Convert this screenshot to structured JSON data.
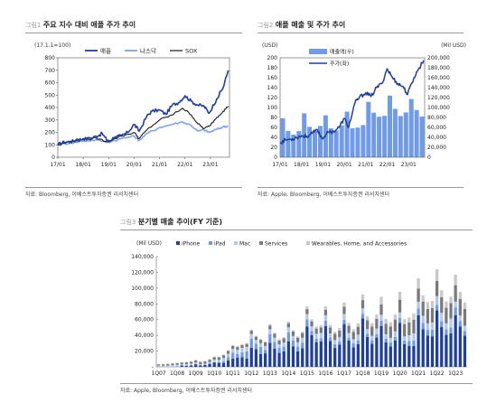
{
  "figure1": {
    "label": "그림1",
    "title": "주요 지수 대비 애플 주가 추이",
    "note": "(17.1.1=100)",
    "source": "자료: Bloomberg, 이베스트투자증권 리서치센터"
  },
  "figure2": {
    "label": "그림2",
    "title": "애플 매출 및 주가 추이",
    "left_unit": "(USD)",
    "right_unit": "(Mil USD)",
    "source": "자료: Apple, Bloomberg, 이베스트투자증권 리서치센터"
  },
  "figure3": {
    "label": "그림3",
    "title": "분기별 매출 추이(FY 기준)",
    "unit": "(Mil USD)",
    "source": "자료: Apple, Bloomberg, 이베스트투자증권 리서치센터"
  },
  "colors": {
    "apple": "#1f3f9e",
    "nasdaq": "#7ea6e6",
    "sox": "#1a1a1a",
    "revenue_bar": "#6f9be8",
    "price_line": "#1f3f9e",
    "iphone": "#1f3f9e",
    "ipad": "#6f9be8",
    "mac": "#b4c8ee",
    "services": "#7a7a7a",
    "wearables": "#c9c9c9"
  },
  "chart_data": [
    {
      "type": "line",
      "ylim": [
        0,
        800
      ],
      "yticks": [
        0,
        100,
        200,
        300,
        400,
        500,
        600,
        700,
        800
      ],
      "xticks": [
        "17/01",
        "18/01",
        "19/01",
        "20/01",
        "21/01",
        "22/01",
        "23/01"
      ],
      "xrange": [
        2017.0,
        2023.75
      ],
      "series": [
        {
          "name": "애플",
          "x": [
            2017.0,
            2017.25,
            2017.5,
            2017.75,
            2018.0,
            2018.25,
            2018.5,
            2018.75,
            2018.95,
            2019.0,
            2019.25,
            2019.5,
            2019.75,
            2020.0,
            2020.2,
            2020.5,
            2020.7,
            2021.0,
            2021.25,
            2021.5,
            2021.75,
            2022.0,
            2022.25,
            2022.5,
            2022.75,
            2022.95,
            2023.25,
            2023.5,
            2023.7
          ],
          "values": [
            100,
            122,
            125,
            135,
            150,
            145,
            170,
            190,
            130,
            130,
            165,
            170,
            200,
            265,
            210,
            330,
            370,
            380,
            345,
            420,
            440,
            495,
            450,
            420,
            410,
            355,
            470,
            560,
            700
          ]
        },
        {
          "name": "나스닥",
          "x": [
            2017.0,
            2017.5,
            2018.0,
            2018.5,
            2018.95,
            2019.5,
            2020.0,
            2020.2,
            2020.5,
            2021.0,
            2021.5,
            2021.9,
            2022.25,
            2022.5,
            2022.75,
            2022.95,
            2023.25,
            2023.5,
            2023.7
          ],
          "values": [
            100,
            115,
            130,
            140,
            120,
            150,
            170,
            135,
            190,
            240,
            265,
            285,
            255,
            210,
            220,
            200,
            225,
            245,
            250
          ]
        },
        {
          "name": "SOX",
          "x": [
            2017.0,
            2017.5,
            2018.0,
            2018.5,
            2018.95,
            2019.5,
            2020.0,
            2020.2,
            2020.5,
            2021.0,
            2021.5,
            2021.9,
            2022.25,
            2022.5,
            2022.75,
            2022.95,
            2023.25,
            2023.5,
            2023.7
          ],
          "values": [
            100,
            130,
            150,
            155,
            125,
            170,
            200,
            150,
            220,
            300,
            340,
            395,
            340,
            270,
            230,
            250,
            320,
            370,
            410
          ]
        }
      ]
    },
    {
      "type": "bar+line",
      "ylim_left": [
        0,
        200
      ],
      "yticks_left": [
        0,
        20,
        40,
        60,
        80,
        100,
        120,
        140,
        160,
        180,
        200
      ],
      "ylim_right": [
        0,
        200000
      ],
      "yticks_right": [
        "0",
        "20,000",
        "40,000",
        "60,000",
        "80,000",
        "100,000",
        "120,000",
        "140,000",
        "160,000",
        "180,000",
        "200,000"
      ],
      "xticks": [
        "17/01",
        "18/01",
        "19/01",
        "20/01",
        "21/01",
        "22/01",
        "23/01"
      ],
      "xrange": [
        2017.0,
        2023.75
      ],
      "bar_series": {
        "name": "매출액(우)",
        "x": [
          2017.0,
          2017.25,
          2017.5,
          2017.75,
          2018.0,
          2018.25,
          2018.5,
          2018.75,
          2019.0,
          2019.25,
          2019.5,
          2019.75,
          2020.0,
          2020.25,
          2020.5,
          2020.75,
          2021.0,
          2021.25,
          2021.5,
          2021.75,
          2022.0,
          2022.25,
          2022.5,
          2022.75,
          2023.0,
          2023.25,
          2023.5
        ],
        "values": [
          78351,
          52896,
          45408,
          52579,
          88293,
          61137,
          53265,
          62900,
          84310,
          58015,
          53809,
          64040,
          91819,
          58313,
          59685,
          64698,
          111439,
          89584,
          81434,
          83360,
          123945,
          97278,
          82959,
          90146,
          117154,
          94836,
          81797
        ]
      },
      "line_series": {
        "name": "주가(좌)",
        "x": [
          2017.0,
          2017.25,
          2017.5,
          2017.75,
          2018.0,
          2018.25,
          2018.5,
          2018.75,
          2018.95,
          2019.25,
          2019.5,
          2019.75,
          2020.0,
          2020.2,
          2020.5,
          2020.7,
          2021.0,
          2021.25,
          2021.5,
          2021.75,
          2022.0,
          2022.25,
          2022.5,
          2022.75,
          2022.95,
          2023.25,
          2023.5,
          2023.7
        ],
        "values": [
          29,
          35,
          36,
          40,
          43,
          42,
          48,
          55,
          38,
          50,
          52,
          60,
          78,
          60,
          110,
          120,
          130,
          122,
          140,
          148,
          178,
          160,
          148,
          142,
          126,
          160,
          180,
          195
        ]
      }
    },
    {
      "type": "bar",
      "stacked": true,
      "ylim": [
        0,
        140000
      ],
      "yticks": [
        "-",
        "20,000",
        "40,000",
        "60,000",
        "80,000",
        "100,000",
        "120,000",
        "140,000"
      ],
      "categories": [
        "1Q07",
        "2Q07",
        "3Q07",
        "4Q07",
        "1Q08",
        "2Q08",
        "3Q08",
        "4Q08",
        "1Q09",
        "2Q09",
        "3Q09",
        "4Q09",
        "1Q10",
        "2Q10",
        "3Q10",
        "4Q10",
        "1Q11",
        "2Q11",
        "3Q11",
        "4Q11",
        "1Q12",
        "2Q12",
        "3Q12",
        "4Q12",
        "1Q13",
        "2Q13",
        "3Q13",
        "4Q13",
        "1Q14",
        "2Q14",
        "3Q14",
        "4Q14",
        "1Q15",
        "2Q15",
        "3Q15",
        "4Q15",
        "1Q16",
        "2Q16",
        "3Q16",
        "4Q16",
        "1Q17",
        "2Q17",
        "3Q17",
        "4Q17",
        "1Q18",
        "2Q18",
        "3Q18",
        "4Q18",
        "1Q19",
        "2Q19",
        "3Q19",
        "4Q19",
        "1Q20",
        "2Q20",
        "3Q20",
        "4Q20",
        "1Q21",
        "2Q21",
        "3Q21",
        "4Q21",
        "1Q22",
        "2Q22",
        "3Q22",
        "4Q22",
        "1Q23",
        "2Q23",
        "3Q23"
      ],
      "xtick_labels": [
        "1Q07",
        "1Q08",
        "1Q09",
        "1Q10",
        "1Q11",
        "1Q12",
        "1Q13",
        "1Q14",
        "1Q15",
        "1Q16",
        "1Q17",
        "1Q18",
        "1Q19",
        "1Q20",
        "1Q21",
        "1Q22",
        "1Q23"
      ],
      "series": [
        {
          "name": "iPhone",
          "values": [
            0,
            0,
            0,
            120,
            240,
            1700,
            1470,
            1730,
            3310,
            1850,
            2350,
            3900,
            5650,
            5440,
            5000,
            8200,
            10470,
            11870,
            12310,
            10310,
            24420,
            22690,
            16250,
            17120,
            30660,
            22960,
            17710,
            19510,
            32500,
            26060,
            19750,
            23720,
            51180,
            40280,
            31370,
            32210,
            51640,
            32860,
            24050,
            28160,
            54380,
            33250,
            24850,
            28850,
            61580,
            38030,
            29470,
            37190,
            51980,
            31050,
            25990,
            33360,
            55960,
            28960,
            26420,
            26440,
            65600,
            47940,
            39570,
            38870,
            71630,
            50570,
            40670,
            42630,
            65780,
            51330,
            39670
          ]
        },
        {
          "name": "iPad",
          "values": [
            0,
            0,
            0,
            0,
            0,
            0,
            0,
            0,
            0,
            0,
            0,
            0,
            0,
            0,
            2170,
            4190,
            7330,
            4610,
            6050,
            9280,
            11120,
            6590,
            9170,
            4510,
            10670,
            8750,
            6370,
            6160,
            11470,
            7610,
            5890,
            7070,
            8990,
            5430,
            4540,
            4280,
            7080,
            4410,
            4880,
            4250,
            5530,
            3890,
            4970,
            4830,
            5860,
            4110,
            4740,
            4090,
            6730,
            4870,
            5020,
            4660,
            5980,
            4370,
            6580,
            6800,
            8440,
            7810,
            7370,
            8250,
            7250,
            7650,
            7220,
            7170,
            9400,
            6670,
            5790
          ]
        },
        {
          "name": "Mac",
          "values": [
            1600,
            1560,
            1760,
            2160,
            2460,
            1640,
            2000,
            2370,
            2200,
            1610,
            1660,
            2110,
            3500,
            3500,
            4290,
            4290,
            5110,
            5110,
            5640,
            5740,
            6310,
            4890,
            4650,
            4940,
            6500,
            5400,
            4480,
            5270,
            6200,
            5560,
            5540,
            6170,
            6940,
            5600,
            6040,
            6620,
            6750,
            5110,
            5110,
            5250,
            7240,
            5840,
            5290,
            7170,
            6900,
            5850,
            5330,
            7310,
            7420,
            5510,
            5820,
            6980,
            7160,
            5350,
            7080,
            9170,
            8680,
            9100,
            8240,
            9180,
            10850,
            10430,
            7380,
            11510,
            7740,
            7170,
            6840
          ]
        },
        {
          "name": "Services",
          "values": [
            1500,
            1700,
            1800,
            1900,
            2000,
            2100,
            2200,
            2400,
            2600,
            2700,
            2800,
            3000,
            3100,
            3200,
            3300,
            3400,
            3500,
            3600,
            3700,
            3800,
            4000,
            4100,
            4200,
            4400,
            4600,
            4800,
            5000,
            5200,
            5300,
            5700,
            5900,
            6000,
            6200,
            6500,
            6700,
            7000,
            7100,
            7500,
            7900,
            8500,
            9100,
            9200,
            9400,
            10100,
            10500,
            11100,
            11700,
            12500,
            13300,
            13400,
            14400,
            15000,
            16200,
            15600,
            16100,
            17400,
            16900,
            18100,
            18300,
            18600,
            19500,
            19800,
            19800,
            19600,
            20800,
            21200,
            21200
          ]
        },
        {
          "name": "Wearables, Home, and Accessories",
          "values": [
            500,
            500,
            500,
            600,
            700,
            600,
            600,
            700,
            800,
            700,
            700,
            800,
            900,
            900,
            1000,
            1100,
            1300,
            1100,
            1100,
            1200,
            1500,
            1300,
            1300,
            1400,
            1700,
            1500,
            1500,
            1600,
            2000,
            1700,
            1600,
            1700,
            3400,
            2600,
            2600,
            3000,
            4400,
            3400,
            2700,
            3200,
            5500,
            3900,
            3300,
            4500,
            7300,
            5100,
            4200,
            5300,
            9500,
            6200,
            5500,
            6500,
            10000,
            6300,
            6450,
            7900,
            12970,
            7840,
            8780,
            8790,
            14700,
            8810,
            8080,
            8440,
            13480,
            8760,
            8280
          ]
        }
      ]
    }
  ]
}
